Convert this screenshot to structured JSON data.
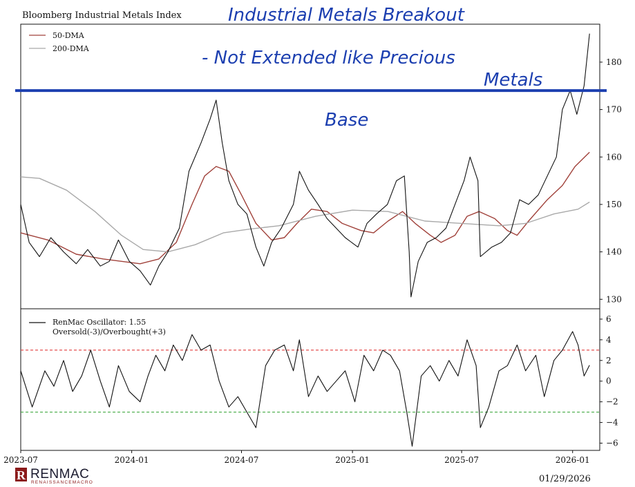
{
  "chart_data": [
    {
      "type": "line",
      "title": "Bloomberg Industrial Metals Index",
      "x_ticks": [
        "2023-07",
        "2024-01",
        "2024-07",
        "2025-01",
        "2025-07",
        "2026-01"
      ],
      "y_ticks": [
        130,
        140,
        150,
        160,
        170,
        180
      ],
      "ylim": [
        128,
        188
      ],
      "legend_position": "top-left",
      "series": [
        {
          "name": "50-DMA",
          "color": "#a0413a",
          "points": [
            [
              "2023-07-01",
              144
            ],
            [
              "2023-08-15",
              142.5
            ],
            [
              "2023-10-01",
              139.5
            ],
            [
              "2023-11-15",
              138.5
            ],
            [
              "2024-01-15",
              137.5
            ],
            [
              "2024-02-15",
              138.5
            ],
            [
              "2024-03-15",
              142
            ],
            [
              "2024-04-10",
              150
            ],
            [
              "2024-05-01",
              156
            ],
            [
              "2024-05-20",
              158
            ],
            [
              "2024-06-10",
              157
            ],
            [
              "2024-07-01",
              152
            ],
            [
              "2024-07-25",
              146
            ],
            [
              "2024-08-20",
              142.5
            ],
            [
              "2024-09-10",
              143
            ],
            [
              "2024-10-01",
              146
            ],
            [
              "2024-10-25",
              149
            ],
            [
              "2024-11-20",
              148.5
            ],
            [
              "2024-12-15",
              146
            ],
            [
              "2025-01-15",
              144.5
            ],
            [
              "2025-02-05",
              144
            ],
            [
              "2025-03-01",
              146.5
            ],
            [
              "2025-03-25",
              148.5
            ],
            [
              "2025-04-15",
              146
            ],
            [
              "2025-05-10",
              143.5
            ],
            [
              "2025-05-28",
              142
            ],
            [
              "2025-06-20",
              143.5
            ],
            [
              "2025-07-10",
              147.5
            ],
            [
              "2025-07-30",
              148.5
            ],
            [
              "2025-08-25",
              147
            ],
            [
              "2025-09-15",
              144.5
            ],
            [
              "2025-10-01",
              143.5
            ],
            [
              "2025-10-20",
              146.5
            ],
            [
              "2025-11-20",
              151
            ],
            [
              "2025-12-15",
              154
            ],
            [
              "2026-01-05",
              158
            ],
            [
              "2026-01-29",
              161
            ]
          ]
        },
        {
          "name": "200-DMA",
          "color": "#a9a9a9",
          "points": [
            [
              "2023-07-01",
              155.8
            ],
            [
              "2023-08-01",
              155.5
            ],
            [
              "2023-09-15",
              153
            ],
            [
              "2023-11-01",
              148.5
            ],
            [
              "2023-12-15",
              143.5
            ],
            [
              "2024-01-20",
              140.5
            ],
            [
              "2024-03-01",
              140
            ],
            [
              "2024-04-15",
              141.5
            ],
            [
              "2024-06-01",
              144
            ],
            [
              "2024-07-15",
              144.8
            ],
            [
              "2024-09-01",
              145.5
            ],
            [
              "2024-11-01",
              147.5
            ],
            [
              "2025-01-01",
              148.8
            ],
            [
              "2025-03-01",
              148.5
            ],
            [
              "2025-05-01",
              146.5
            ],
            [
              "2025-07-01",
              146
            ],
            [
              "2025-09-01",
              145.5
            ],
            [
              "2025-10-15",
              146
            ],
            [
              "2025-12-01",
              148
            ],
            [
              "2026-01-10",
              149
            ],
            [
              "2026-01-29",
              150.5
            ]
          ]
        },
        {
          "name": "",
          "color": "#111111",
          "points": [
            [
              "2023-07-01",
              150
            ],
            [
              "2023-07-15",
              142
            ],
            [
              "2023-08-01",
              139
            ],
            [
              "2023-08-20",
              143
            ],
            [
              "2023-09-10",
              140
            ],
            [
              "2023-10-01",
              137.5
            ],
            [
              "2023-10-20",
              140.5
            ],
            [
              "2023-11-10",
              137
            ],
            [
              "2023-11-25",
              138
            ],
            [
              "2023-12-10",
              142.5
            ],
            [
              "2023-12-28",
              138
            ],
            [
              "2024-01-15",
              136
            ],
            [
              "2024-02-01",
              133
            ],
            [
              "2024-02-15",
              137
            ],
            [
              "2024-03-01",
              140
            ],
            [
              "2024-03-20",
              145
            ],
            [
              "2024-04-05",
              157
            ],
            [
              "2024-04-25",
              163
            ],
            [
              "2024-05-10",
              168
            ],
            [
              "2024-05-20",
              172
            ],
            [
              "2024-05-30",
              163
            ],
            [
              "2024-06-10",
              155
            ],
            [
              "2024-06-25",
              150
            ],
            [
              "2024-07-10",
              148
            ],
            [
              "2024-07-25",
              141
            ],
            [
              "2024-08-07",
              137
            ],
            [
              "2024-08-20",
              142
            ],
            [
              "2024-09-05",
              145
            ],
            [
              "2024-09-25",
              150
            ],
            [
              "2024-10-05",
              157
            ],
            [
              "2024-10-20",
              153
            ],
            [
              "2024-11-05",
              150
            ],
            [
              "2024-11-20",
              147
            ],
            [
              "2024-12-05",
              145
            ],
            [
              "2024-12-20",
              143
            ],
            [
              "2025-01-10",
              141
            ],
            [
              "2025-01-25",
              146
            ],
            [
              "2025-02-10",
              148
            ],
            [
              "2025-02-28",
              150
            ],
            [
              "2025-03-15",
              155
            ],
            [
              "2025-03-28",
              156
            ],
            [
              "2025-04-05",
              140
            ],
            [
              "2025-04-08",
              130.5
            ],
            [
              "2025-04-20",
              138
            ],
            [
              "2025-05-05",
              142
            ],
            [
              "2025-05-20",
              143
            ],
            [
              "2025-06-05",
              145
            ],
            [
              "2025-06-20",
              150
            ],
            [
              "2025-07-05",
              155
            ],
            [
              "2025-07-15",
              160
            ],
            [
              "2025-07-28",
              155
            ],
            [
              "2025-08-01",
              139
            ],
            [
              "2025-08-20",
              141
            ],
            [
              "2025-09-05",
              142
            ],
            [
              "2025-09-20",
              144
            ],
            [
              "2025-10-05",
              151
            ],
            [
              "2025-10-20",
              150
            ],
            [
              "2025-11-05",
              152
            ],
            [
              "2025-11-20",
              156
            ],
            [
              "2025-12-05",
              160
            ],
            [
              "2025-12-15",
              170
            ],
            [
              "2025-12-28",
              174
            ],
            [
              "2026-01-08",
              169
            ],
            [
              "2026-01-20",
              175
            ],
            [
              "2026-01-29",
              186
            ]
          ]
        }
      ]
    },
    {
      "type": "line",
      "x_ticks": [
        "2023-07",
        "2024-01",
        "2024-07",
        "2025-01",
        "2025-07",
        "2026-01"
      ],
      "y_ticks": [
        -6,
        -4,
        -2,
        0,
        2,
        4,
        6
      ],
      "ylim": [
        -6.7,
        7
      ],
      "legend_position": "top-left",
      "reference_lines": [
        {
          "y": 3,
          "color": "#e23b3b"
        },
        {
          "y": -3,
          "color": "#2fa12f"
        }
      ],
      "series": [
        {
          "name": "RenMac Oscillator: 1.55",
          "color": "#111111",
          "points": [
            [
              "2023-07-01",
              1
            ],
            [
              "2023-07-20",
              -2.5
            ],
            [
              "2023-08-10",
              1
            ],
            [
              "2023-08-25",
              -0.5
            ],
            [
              "2023-09-10",
              2
            ],
            [
              "2023-09-25",
              -1
            ],
            [
              "2023-10-10",
              0.5
            ],
            [
              "2023-10-25",
              3
            ],
            [
              "2023-11-10",
              0
            ],
            [
              "2023-11-25",
              -2.5
            ],
            [
              "2023-12-10",
              1.5
            ],
            [
              "2023-12-28",
              -1
            ],
            [
              "2024-01-15",
              -2
            ],
            [
              "2024-01-28",
              0.5
            ],
            [
              "2024-02-10",
              2.5
            ],
            [
              "2024-02-25",
              1
            ],
            [
              "2024-03-10",
              3.5
            ],
            [
              "2024-03-25",
              2
            ],
            [
              "2024-04-10",
              4.5
            ],
            [
              "2024-04-25",
              3
            ],
            [
              "2024-05-10",
              3.5
            ],
            [
              "2024-05-25",
              0
            ],
            [
              "2024-06-10",
              -2.5
            ],
            [
              "2024-06-25",
              -1.5
            ],
            [
              "2024-07-10",
              -3
            ],
            [
              "2024-07-25",
              -4.5
            ],
            [
              "2024-08-10",
              1.5
            ],
            [
              "2024-08-25",
              3
            ],
            [
              "2024-09-10",
              3.5
            ],
            [
              "2024-09-25",
              1
            ],
            [
              "2024-10-05",
              4
            ],
            [
              "2024-10-20",
              -1.5
            ],
            [
              "2024-11-05",
              0.5
            ],
            [
              "2024-11-20",
              -1
            ],
            [
              "2024-12-05",
              0
            ],
            [
              "2024-12-20",
              1
            ],
            [
              "2025-01-05",
              -2
            ],
            [
              "2025-01-20",
              2.5
            ],
            [
              "2025-02-05",
              1
            ],
            [
              "2025-02-20",
              3
            ],
            [
              "2025-03-05",
              2.5
            ],
            [
              "2025-03-20",
              1
            ],
            [
              "2025-04-01",
              -3
            ],
            [
              "2025-04-10",
              -6.3
            ],
            [
              "2025-04-25",
              0.5
            ],
            [
              "2025-05-10",
              1.5
            ],
            [
              "2025-05-25",
              0
            ],
            [
              "2025-06-10",
              2
            ],
            [
              "2025-06-25",
              0.5
            ],
            [
              "2025-07-10",
              4
            ],
            [
              "2025-07-25",
              1.5
            ],
            [
              "2025-08-01",
              -4.5
            ],
            [
              "2025-08-15",
              -2.5
            ],
            [
              "2025-09-01",
              1
            ],
            [
              "2025-09-15",
              1.5
            ],
            [
              "2025-10-01",
              3.5
            ],
            [
              "2025-10-15",
              1
            ],
            [
              "2025-11-01",
              2.5
            ],
            [
              "2025-11-15",
              -1.5
            ],
            [
              "2025-12-01",
              2
            ],
            [
              "2025-12-15",
              3
            ],
            [
              "2026-01-01",
              4.8
            ],
            [
              "2026-01-10",
              3.5
            ],
            [
              "2026-01-20",
              0.5
            ],
            [
              "2026-01-29",
              1.55
            ]
          ]
        }
      ],
      "legend_extra": "Oversold(-3)/Overbought(+3)"
    }
  ],
  "annotations": {
    "line1": "Industrial Metals Breakout",
    "line2": "- Not Extended like Precious",
    "line3": "Metals",
    "base": "Base",
    "level": 174,
    "color": "#1c3fb0"
  },
  "brand": {
    "name": "RENMAC",
    "sub": "RENAISSANCEMACRO",
    "mark": "R"
  },
  "date_stamp": "01/29/2026"
}
